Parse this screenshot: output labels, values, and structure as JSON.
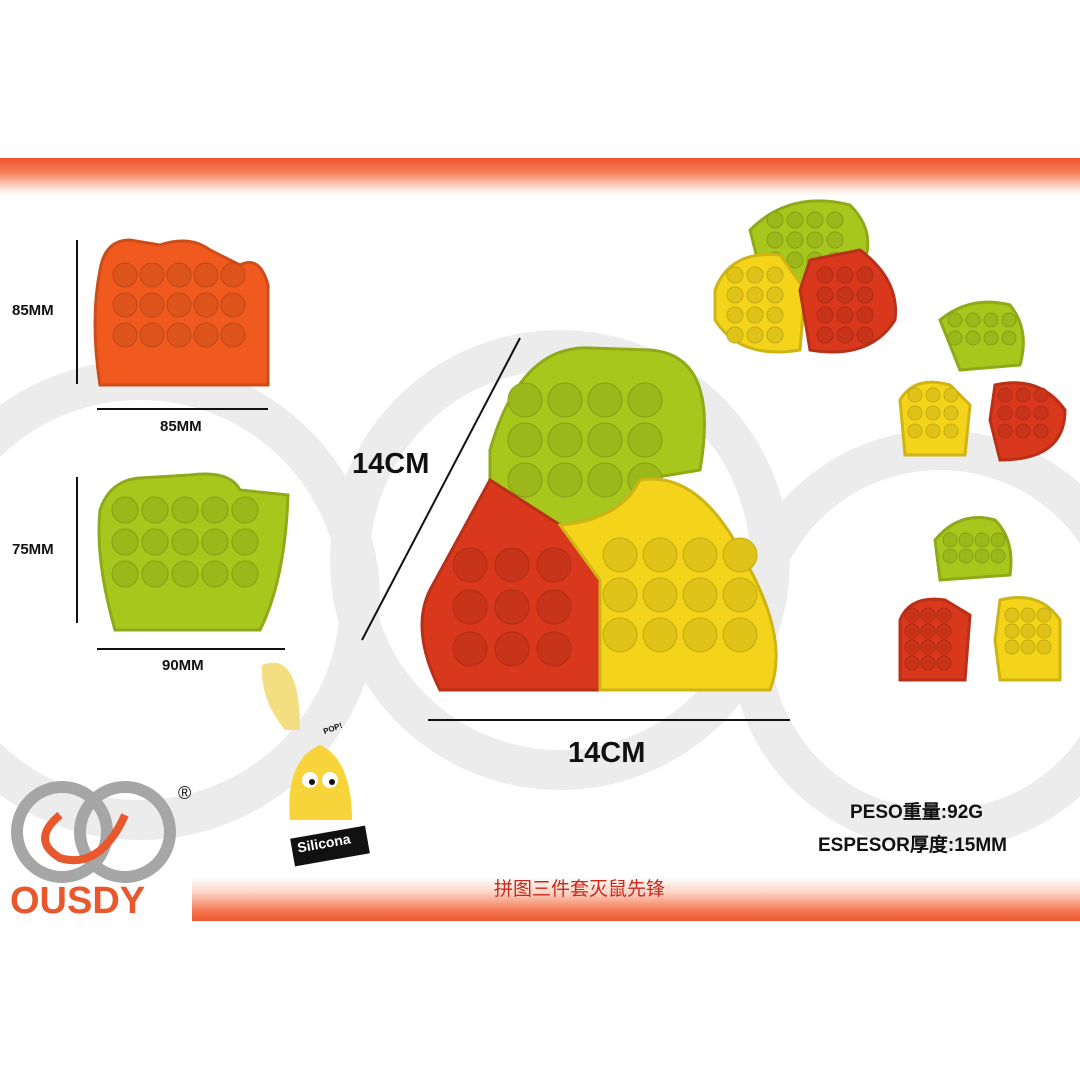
{
  "brand": {
    "name": "OUSDY",
    "registered": "®",
    "colors": {
      "orange": "#e8582c",
      "gray": "#a6a6a6"
    }
  },
  "dimensions": {
    "piece1_height": "85MM",
    "piece1_width": "85MM",
    "piece2_height": "75MM",
    "piece2_width": "90MM",
    "main_side": "14CM",
    "main_base": "14CM"
  },
  "badge": {
    "label": "Silicona",
    "pop": "POP!"
  },
  "specs": {
    "weight": "PESO重量:92G",
    "thickness": "ESPESOR厚度:15MM"
  },
  "footer_title": "拼图三件套灭鼠先锋",
  "colors": {
    "red": "#d9381c",
    "orange": "#f05a1e",
    "green": "#a8c71c",
    "yellow": "#f3d41a",
    "accent": "#ee5a2e"
  }
}
